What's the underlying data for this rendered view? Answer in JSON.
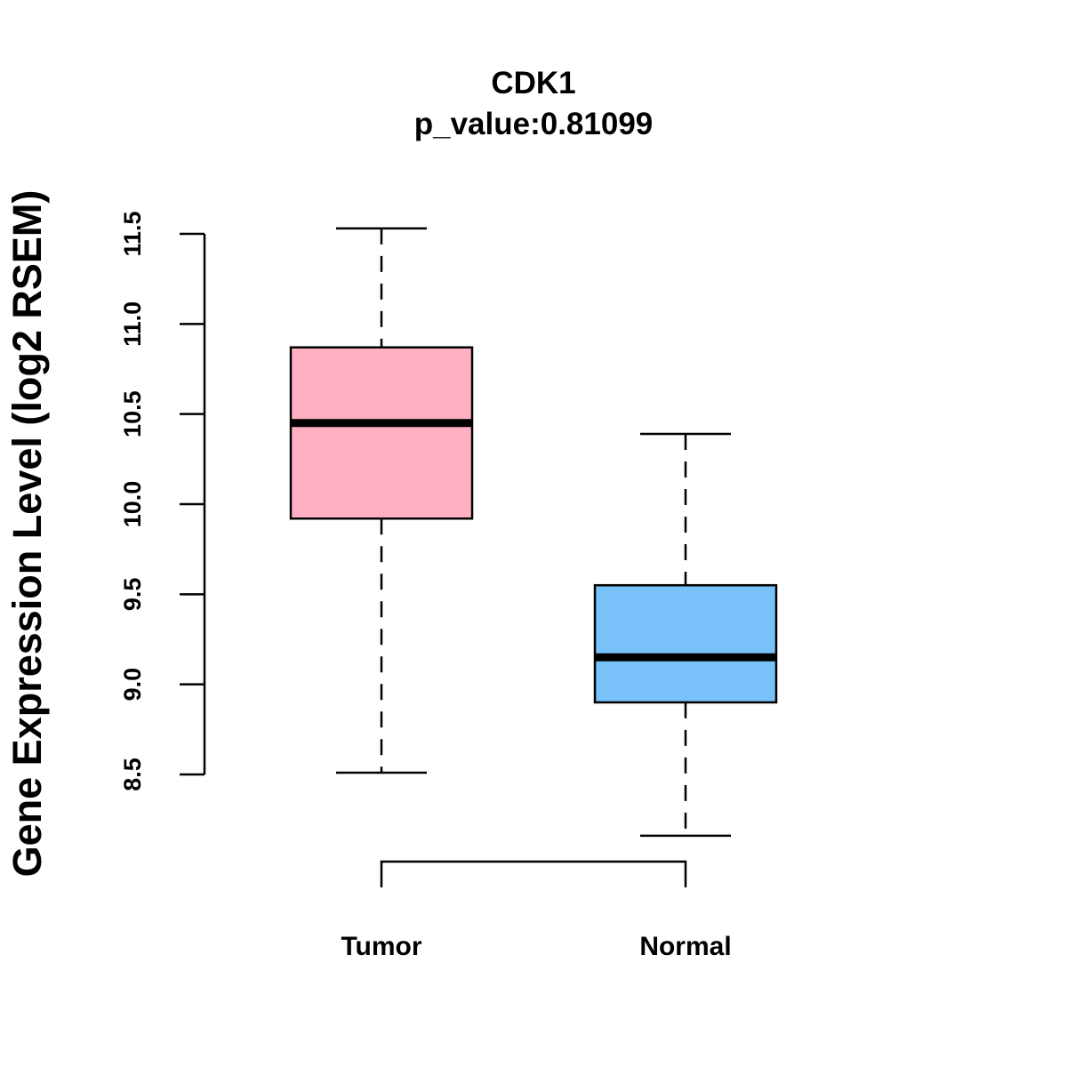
{
  "chart_data": {
    "type": "boxplot",
    "title": "CDK1",
    "subtitle": "p_value:0.81099",
    "ylabel": "Gene Expression Level (log2 RSEM)",
    "xlabel": "",
    "ylim": [
      8.5,
      11.5
    ],
    "yticks": [
      "8.5",
      "9.0",
      "9.5",
      "10.0",
      "10.5",
      "11.0",
      "11.5"
    ],
    "categories": [
      "Tumor",
      "Normal"
    ],
    "series": [
      {
        "name": "Tumor",
        "whisker_low": 8.51,
        "q1": 9.92,
        "median": 10.45,
        "q3": 10.87,
        "whisker_high": 11.53,
        "color": "#FFB1C3"
      },
      {
        "name": "Normal",
        "whisker_low": 8.16,
        "q1": 8.9,
        "median": 9.15,
        "q3": 9.55,
        "whisker_high": 10.39,
        "color": "#78C1F9"
      }
    ],
    "comparison_bracket": [
      "Tumor",
      "Normal"
    ],
    "grid": false
  }
}
